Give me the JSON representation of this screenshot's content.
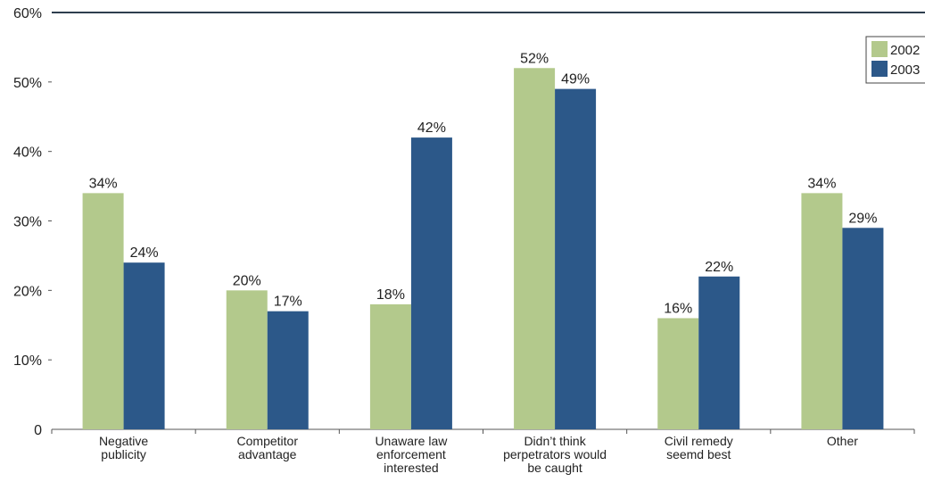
{
  "chart_data": {
    "type": "bar",
    "categories": [
      [
        "Negative",
        "publicity"
      ],
      [
        "Competitor",
        "advantage"
      ],
      [
        "Unaware law",
        "enforcement",
        "interested"
      ],
      [
        "Didn’t think",
        "perpetrators would",
        "be caught"
      ],
      [
        "Civil remedy",
        "seemd best"
      ],
      [
        "Other"
      ]
    ],
    "series": [
      {
        "name": "2002",
        "color": "#b3c98c",
        "values": [
          34,
          20,
          18,
          52,
          16,
          34
        ],
        "labels": [
          "34%",
          "20%",
          "18%",
          "52%",
          "16%",
          "34%"
        ]
      },
      {
        "name": "2003",
        "color": "#2c5889",
        "values": [
          24,
          17,
          42,
          49,
          22,
          29
        ],
        "labels": [
          "24%",
          "17%",
          "42%",
          "49%",
          "22%",
          "29%"
        ]
      }
    ],
    "ylim": [
      0,
      60
    ],
    "yticks": [
      0,
      10,
      20,
      30,
      40,
      50,
      60
    ],
    "ytick_labels": [
      "0",
      "10%",
      "20%",
      "30%",
      "40%",
      "50%",
      "60%"
    ],
    "title": "",
    "xlabel": "",
    "ylabel": "",
    "legend": "top-right",
    "grid": false
  }
}
